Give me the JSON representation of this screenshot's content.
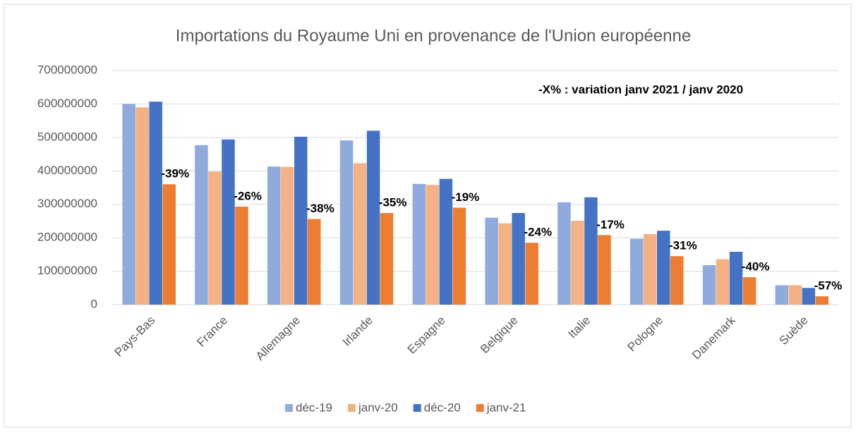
{
  "chart_data": {
    "type": "bar",
    "title": "Importations du  Royaume Uni en provenance de l'Union européenne",
    "annotation": "-X% : variation janv 2021 / janv 2020",
    "categories": [
      "Pays-Bas",
      "France",
      "Allemagne",
      "Irlande",
      "Espagne",
      "Belgique",
      "Italie",
      "Pologne",
      "Danemark",
      "Suède"
    ],
    "series": [
      {
        "name": "déc-19",
        "color": "#8faadc",
        "values": [
          600000000,
          477000000,
          413000000,
          491000000,
          361000000,
          260000000,
          306000000,
          197000000,
          118000000,
          58000000
        ]
      },
      {
        "name": "janv-20",
        "color": "#f4b183",
        "values": [
          590000000,
          398000000,
          412000000,
          423000000,
          358000000,
          243000000,
          251000000,
          211000000,
          136000000,
          58000000
        ]
      },
      {
        "name": "déc-20",
        "color": "#4472c4",
        "values": [
          607000000,
          494000000,
          502000000,
          520000000,
          376000000,
          274000000,
          321000000,
          221000000,
          158000000,
          50000000
        ]
      },
      {
        "name": "janv-21",
        "color": "#ed7d31",
        "values": [
          360000000,
          293000000,
          256000000,
          274000000,
          290000000,
          185000000,
          208000000,
          145000000,
          82000000,
          25000000
        ],
        "change_labels": [
          "-39%",
          "-26%",
          "-38%",
          "-35%",
          "-19%",
          "-24%",
          "-17%",
          "-31%",
          "-40%",
          "-57%"
        ]
      }
    ],
    "ylim": [
      0,
      700000000
    ],
    "yticks": [
      0,
      100000000,
      200000000,
      300000000,
      400000000,
      500000000,
      600000000,
      700000000
    ],
    "grid": true,
    "legend": "bottom"
  }
}
